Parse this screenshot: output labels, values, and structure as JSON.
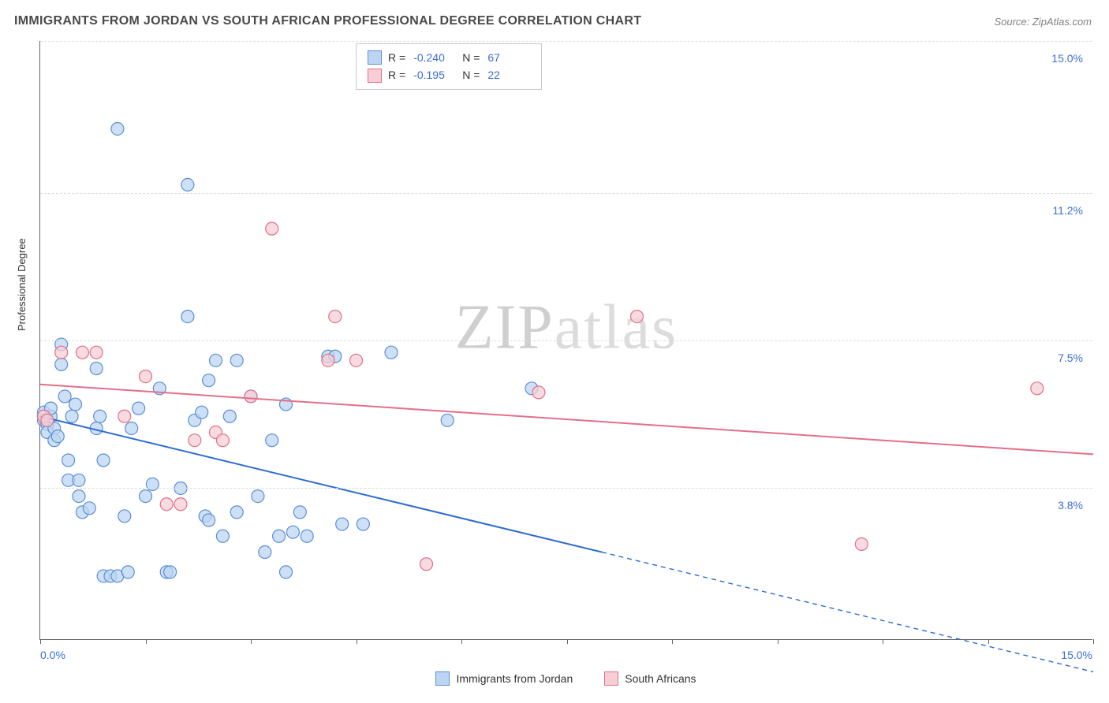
{
  "title": "IMMIGRANTS FROM JORDAN VS SOUTH AFRICAN PROFESSIONAL DEGREE CORRELATION CHART",
  "source": "Source: ZipAtlas.com",
  "ylabel": "Professional Degree",
  "watermark_a": "ZIP",
  "watermark_b": "atlas",
  "chart": {
    "type": "scatter",
    "background_color": "#ffffff",
    "grid_color": "#dcdcdc",
    "axis_color": "#666666",
    "xlim": [
      0.0,
      15.0
    ],
    "ylim": [
      0.0,
      15.0
    ],
    "xticks": {
      "min_label": "0.0%",
      "max_label": "15.0%",
      "minor_positions": [
        0,
        1.5,
        3.0,
        4.5,
        6.0,
        7.5,
        9.0,
        10.5,
        12.0,
        13.5,
        15.0
      ]
    },
    "yticks": [
      {
        "value": 3.8,
        "label": "3.8%"
      },
      {
        "value": 7.5,
        "label": "7.5%"
      },
      {
        "value": 11.2,
        "label": "11.2%"
      },
      {
        "value": 15.0,
        "label": "15.0%"
      }
    ],
    "series": [
      {
        "name": "Immigrants from Jordan",
        "marker_fill": "#bcd5f2",
        "marker_stroke": "#5b8fd6",
        "marker_radius": 8,
        "marker_opacity": 0.75,
        "line_color": "#2d6bd1",
        "line_width": 2,
        "trend": {
          "x1": 0.0,
          "y1": 5.6,
          "x2": 8.0,
          "y2": 2.2,
          "dash_extend_to_x": 15.0,
          "dash_extend_to_y": -0.8
        },
        "stats": {
          "R": "-0.240",
          "N": "67"
        },
        "points": [
          [
            0.05,
            5.5
          ],
          [
            0.05,
            5.7
          ],
          [
            0.1,
            5.4
          ],
          [
            0.1,
            5.2
          ],
          [
            0.15,
            5.6
          ],
          [
            0.15,
            5.8
          ],
          [
            0.2,
            5.3
          ],
          [
            0.2,
            5.0
          ],
          [
            0.25,
            5.1
          ],
          [
            0.3,
            6.9
          ],
          [
            0.3,
            7.4
          ],
          [
            0.35,
            6.1
          ],
          [
            0.4,
            4.5
          ],
          [
            0.4,
            4.0
          ],
          [
            0.45,
            5.6
          ],
          [
            0.5,
            5.9
          ],
          [
            0.55,
            4.0
          ],
          [
            0.55,
            3.6
          ],
          [
            0.6,
            3.2
          ],
          [
            0.7,
            3.3
          ],
          [
            0.8,
            6.8
          ],
          [
            0.8,
            5.3
          ],
          [
            0.85,
            5.6
          ],
          [
            0.9,
            4.5
          ],
          [
            0.9,
            1.6
          ],
          [
            1.0,
            1.6
          ],
          [
            1.1,
            12.8
          ],
          [
            1.1,
            1.6
          ],
          [
            1.2,
            3.1
          ],
          [
            1.25,
            1.7
          ],
          [
            1.3,
            5.3
          ],
          [
            1.4,
            5.8
          ],
          [
            1.5,
            3.6
          ],
          [
            1.6,
            3.9
          ],
          [
            1.7,
            6.3
          ],
          [
            1.8,
            1.7
          ],
          [
            1.85,
            1.7
          ],
          [
            2.0,
            3.8
          ],
          [
            2.1,
            11.4
          ],
          [
            2.1,
            8.1
          ],
          [
            2.2,
            5.5
          ],
          [
            2.3,
            5.7
          ],
          [
            2.35,
            3.1
          ],
          [
            2.4,
            6.5
          ],
          [
            2.4,
            3.0
          ],
          [
            2.5,
            7.0
          ],
          [
            2.6,
            2.6
          ],
          [
            2.7,
            5.6
          ],
          [
            2.8,
            7.0
          ],
          [
            2.8,
            3.2
          ],
          [
            3.0,
            6.1
          ],
          [
            3.1,
            3.6
          ],
          [
            3.2,
            2.2
          ],
          [
            3.3,
            5.0
          ],
          [
            3.4,
            2.6
          ],
          [
            3.5,
            5.9
          ],
          [
            3.5,
            1.7
          ],
          [
            3.6,
            2.7
          ],
          [
            3.7,
            3.2
          ],
          [
            3.8,
            2.6
          ],
          [
            4.1,
            7.1
          ],
          [
            4.2,
            7.1
          ],
          [
            4.3,
            2.9
          ],
          [
            4.6,
            2.9
          ],
          [
            5.0,
            7.2
          ],
          [
            5.8,
            5.5
          ],
          [
            7.0,
            6.3
          ]
        ]
      },
      {
        "name": "South Africans",
        "marker_fill": "#f6cfd6",
        "marker_stroke": "#e36f88",
        "marker_radius": 8,
        "marker_opacity": 0.75,
        "line_color": "#e36f88",
        "line_width": 2,
        "trend": {
          "x1": 0.0,
          "y1": 6.4,
          "x2": 15.0,
          "y2": 4.65
        },
        "stats": {
          "R": "-0.195",
          "N": "22"
        },
        "points": [
          [
            0.05,
            5.6
          ],
          [
            0.1,
            5.5
          ],
          [
            0.3,
            7.2
          ],
          [
            0.6,
            7.2
          ],
          [
            0.8,
            7.2
          ],
          [
            1.2,
            5.6
          ],
          [
            1.5,
            6.6
          ],
          [
            1.8,
            3.4
          ],
          [
            2.0,
            3.4
          ],
          [
            2.2,
            5.0
          ],
          [
            2.5,
            5.2
          ],
          [
            2.6,
            5.0
          ],
          [
            3.0,
            6.1
          ],
          [
            3.3,
            10.3
          ],
          [
            4.1,
            7.0
          ],
          [
            4.2,
            8.1
          ],
          [
            4.5,
            7.0
          ],
          [
            5.5,
            1.9
          ],
          [
            7.1,
            6.2
          ],
          [
            8.5,
            8.1
          ],
          [
            11.7,
            2.4
          ],
          [
            14.2,
            6.3
          ]
        ]
      }
    ]
  },
  "legend_top": [
    {
      "swatch_fill": "#bcd5f2",
      "swatch_stroke": "#5b8fd6"
    },
    {
      "swatch_fill": "#f6cfd6",
      "swatch_stroke": "#e36f88"
    }
  ],
  "legend_bottom": [
    {
      "swatch_fill": "#bcd5f2",
      "swatch_stroke": "#5b8fd6",
      "label": "Immigrants from Jordan"
    },
    {
      "swatch_fill": "#f6cfd6",
      "swatch_stroke": "#e36f88",
      "label": "South Africans"
    }
  ]
}
